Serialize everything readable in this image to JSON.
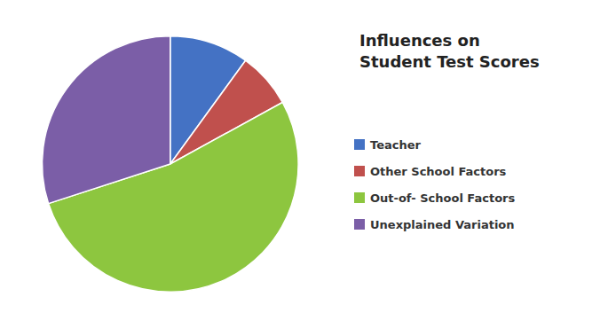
{
  "chart_data": {
    "type": "pie",
    "title": "Influences on\nStudent Test Scores",
    "categories": [
      "Teacher",
      "Other School Factors",
      "Out-of- School Factors",
      "Unexplained Variation"
    ],
    "values": [
      10,
      7,
      53,
      30
    ],
    "colors": [
      "#4472C4",
      "#C0504D",
      "#8DC63F",
      "#7B5EA7"
    ],
    "legend": "right"
  }
}
